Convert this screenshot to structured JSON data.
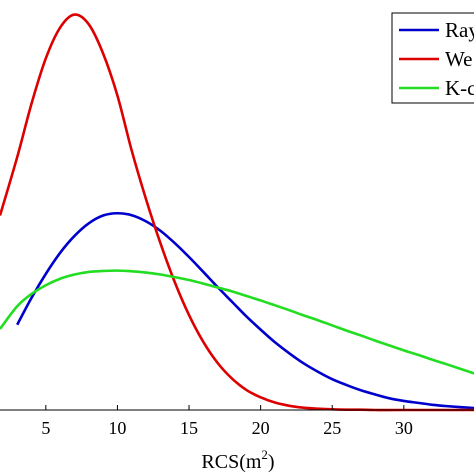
{
  "chart_data": {
    "type": "line",
    "xlabel": "RCS(m",
    "xlabel_sup": "2",
    "xlabel_close": ")",
    "xlim": [
      1.8,
      34.9
    ],
    "ylim": [
      0,
      0.1265
    ],
    "x_ticks": [
      5,
      10,
      15,
      20,
      25,
      30
    ],
    "x_tick_labels": [
      "5",
      "10",
      "15",
      "20",
      "25",
      "30"
    ],
    "grid": false,
    "legend_position": "top-right",
    "series": [
      {
        "name": "Ray",
        "color": "#0000cc",
        "x": [
          3,
          4,
          5,
          6,
          7,
          8,
          9,
          10,
          11,
          12,
          13,
          14,
          15,
          16,
          17,
          18,
          19,
          20,
          21,
          22,
          23,
          24,
          25,
          26,
          27,
          28,
          29,
          30,
          31,
          32,
          33,
          34.9
        ],
        "y": [
          0.0263,
          0.0346,
          0.042,
          0.0485,
          0.0537,
          0.0576,
          0.06,
          0.0607,
          0.0601,
          0.0582,
          0.0553,
          0.0515,
          0.0472,
          0.0426,
          0.0379,
          0.0334,
          0.0289,
          0.0248,
          0.0209,
          0.0175,
          0.0144,
          0.0118,
          0.0095,
          0.0077,
          0.0061,
          0.0048,
          0.0036,
          0.0028,
          0.0022,
          0.0016,
          0.0012,
          0.0006
        ]
      },
      {
        "name": "We",
        "color": "#dd0000",
        "x": [
          1.8,
          3,
          4,
          5,
          6,
          7,
          8,
          9,
          10,
          11,
          12,
          13,
          14,
          15,
          16,
          17,
          18,
          19,
          20,
          21,
          22,
          23,
          24,
          25,
          26,
          27,
          28,
          30,
          34.9
        ],
        "y": [
          0.06,
          0.078,
          0.0945,
          0.1085,
          0.118,
          0.122,
          0.119,
          0.11,
          0.097,
          0.08,
          0.065,
          0.0515,
          0.0395,
          0.0293,
          0.021,
          0.0145,
          0.0097,
          0.0062,
          0.0039,
          0.0023,
          0.0013,
          0.0007,
          0.0004,
          0.0002,
          0.0001,
          0.0001,
          0.0,
          0.0,
          0.0
        ]
      },
      {
        "name": "K-c",
        "color": "#22dd22",
        "x": [
          1.8,
          3,
          4,
          5,
          6,
          7,
          8,
          9,
          10,
          11,
          12,
          13,
          14,
          15,
          16,
          17,
          18,
          19,
          20,
          21,
          22,
          23,
          24,
          25,
          26,
          27,
          28,
          29,
          30,
          31,
          32,
          33,
          34.9
        ],
        "y": [
          0.025,
          0.032,
          0.0358,
          0.0385,
          0.0405,
          0.0418,
          0.0426,
          0.0429,
          0.043,
          0.0428,
          0.0424,
          0.0418,
          0.041,
          0.0401,
          0.039,
          0.0378,
          0.0366,
          0.0352,
          0.0338,
          0.0323,
          0.0308,
          0.0292,
          0.0277,
          0.0261,
          0.0245,
          0.023,
          0.0214,
          0.0199,
          0.0184,
          0.017,
          0.0155,
          0.0141,
          0.0113
        ]
      }
    ]
  }
}
